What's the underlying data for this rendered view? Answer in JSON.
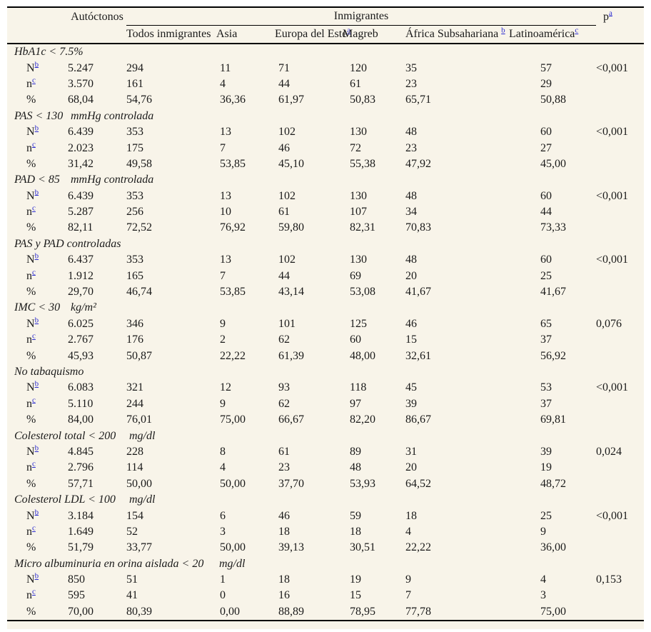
{
  "page": {
    "background_color": "#f8f4e9",
    "rule_color": "#000000",
    "footnote_link_color": "#2b2bd0"
  },
  "header": {
    "autoctonos_label": "Autóctonos",
    "inmigrantes_label": "Inmigrantes",
    "p_label": "p",
    "p_sup": "a",
    "subheaders": [
      {
        "label": "Todos inmigrantes",
        "sup": ""
      },
      {
        "label": "Asia",
        "sup": ""
      },
      {
        "label": "Europa del Este",
        "sup": "a"
      },
      {
        "label": "Magreb",
        "sup": ""
      },
      {
        "label": "África Subsahariana ",
        "sup": "b"
      },
      {
        "label": "Latinoamérica",
        "sup": "c"
      }
    ]
  },
  "row_labels": {
    "N_label": "N",
    "N_sup": "b",
    "n_label": "n",
    "n_sup": "c",
    "pct_label": "%"
  },
  "sections": [
    {
      "title": "HbA1c < 7.5%",
      "title_span": 2,
      "units": "",
      "N": [
        "5.247",
        "294",
        "11",
        "71",
        "120",
        "35",
        "57"
      ],
      "n": [
        "3.570",
        "161",
        "4",
        "44",
        "61",
        "23",
        "29"
      ],
      "pct": [
        "68,04",
        "54,76",
        "36,36",
        "61,97",
        "50,83",
        "65,71",
        "50,88"
      ],
      "p": "<0,001"
    },
    {
      "title": "PAS < 130",
      "title_span": 1,
      "units": "mmHg controlada",
      "N": [
        "6.439",
        "353",
        "13",
        "102",
        "130",
        "48",
        "60"
      ],
      "n": [
        "2.023",
        "175",
        "7",
        "46",
        "72",
        "23",
        "27"
      ],
      "pct": [
        "31,42",
        "49,58",
        "53,85",
        "45,10",
        "55,38",
        "47,92",
        "45,00"
      ],
      "p": "<0,001"
    },
    {
      "title": "PAD < 85",
      "title_span": 1,
      "units": "mmHg controlada",
      "N": [
        "6.439",
        "353",
        "13",
        "102",
        "130",
        "48",
        "60"
      ],
      "n": [
        "5.287",
        "256",
        "10",
        "61",
        "107",
        "34",
        "44"
      ],
      "pct": [
        "82,11",
        "72,52",
        "76,92",
        "59,80",
        "82,31",
        "70,83",
        "73,33"
      ],
      "p": "<0,001"
    },
    {
      "title": "PAS y PAD controladas",
      "title_span": 2,
      "units": "",
      "N": [
        "6.437",
        "353",
        "13",
        "102",
        "130",
        "48",
        "60"
      ],
      "n": [
        "1.912",
        "165",
        "7",
        "44",
        "69",
        "20",
        "25"
      ],
      "pct": [
        "29,70",
        "46,74",
        "53,85",
        "43,14",
        "53,08",
        "41,67",
        "41,67"
      ],
      "p": "<0,001"
    },
    {
      "title": "IMC < 30",
      "title_span": 1,
      "units": "kg/m²",
      "N": [
        "6.025",
        "346",
        "9",
        "101",
        "125",
        "46",
        "65"
      ],
      "n": [
        "2.767",
        "176",
        "2",
        "62",
        "60",
        "15",
        "37"
      ],
      "pct": [
        "45,93",
        "50,87",
        "22,22",
        "61,39",
        "48,00",
        "32,61",
        "56,92"
      ],
      "p": "0,076"
    },
    {
      "title": "No tabaquismo",
      "title_span": 2,
      "units": "",
      "N": [
        "6.083",
        "321",
        "12",
        "93",
        "118",
        "45",
        "53"
      ],
      "n": [
        "5.110",
        "244",
        "9",
        "62",
        "97",
        "39",
        "37"
      ],
      "pct": [
        "84,00",
        "76,01",
        "75,00",
        "66,67",
        "82,20",
        "86,67",
        "69,81"
      ],
      "p": "<0,001"
    },
    {
      "title": "Colesterol total < 200",
      "title_span": 2,
      "units": "mg/dl",
      "N": [
        "4.845",
        "228",
        "8",
        "61",
        "89",
        "31",
        "39"
      ],
      "n": [
        "2.796",
        "114",
        "4",
        "23",
        "48",
        "20",
        "19"
      ],
      "pct": [
        "57,71",
        "50,00",
        "50,00",
        "37,70",
        "53,93",
        "64,52",
        "48,72"
      ],
      "p": "0,024"
    },
    {
      "title": "Colesterol LDL < 100",
      "title_span": 2,
      "units": "mg/dl",
      "N": [
        "3.184",
        "154",
        "6",
        "46",
        "59",
        "18",
        "25"
      ],
      "n": [
        "1.649",
        "52",
        "3",
        "18",
        "18",
        "4",
        "9"
      ],
      "pct": [
        "51,79",
        "33,77",
        "50,00",
        "39,13",
        "30,51",
        "22,22",
        "36,00"
      ],
      "p": "<0,001"
    },
    {
      "title": "Micro albuminuria en orina aislada < 20",
      "title_span": 3,
      "units": "mg/dl",
      "N": [
        "850",
        "51",
        "1",
        "18",
        "19",
        "9",
        "4"
      ],
      "n": [
        "595",
        "41",
        "0",
        "16",
        "15",
        "7",
        "3"
      ],
      "pct": [
        "70,00",
        "80,39",
        "0,00",
        "88,89",
        "78,95",
        "77,78",
        "75,00"
      ],
      "p": "0,153"
    }
  ]
}
